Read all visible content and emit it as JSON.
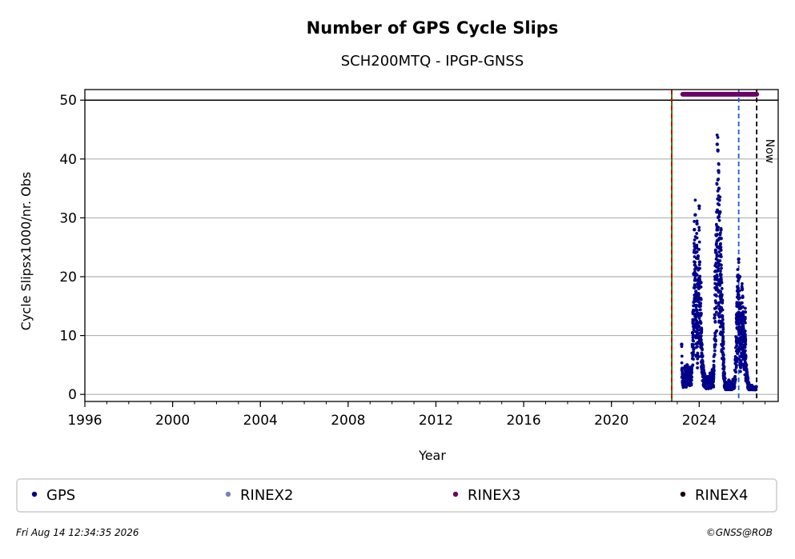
{
  "chart_data": {
    "type": "scatter",
    "title": "Number of GPS Cycle Slips",
    "subtitle": "SCH200MTQ - IPGP-GNSS",
    "xlabel": "Year",
    "ylabel": "Cycle Slipsx1000/nr. Obs",
    "xlim": [
      1996,
      2027.6
    ],
    "ylim": [
      -1.2,
      51.8
    ],
    "x_ticks": [
      1996,
      2000,
      2004,
      2008,
      2012,
      2016,
      2020,
      2024
    ],
    "y_ticks": [
      0,
      10,
      20,
      30,
      40,
      50
    ],
    "grid": "horizontal",
    "reference_line_y": 50,
    "vertical_lines": [
      {
        "x": 2022.75,
        "style": "solid",
        "color": "#008000"
      },
      {
        "x": 2022.75,
        "style": "dashed",
        "color": "#cc0000"
      },
      {
        "x": 2025.8,
        "style": "dashed",
        "color": "#1f5fbf"
      },
      {
        "x": 2026.62,
        "style": "dashed",
        "color": "#000000",
        "label": "Now"
      }
    ],
    "series": [
      {
        "name": "GPS",
        "color": "#00008b",
        "x": [
          2023.2,
          2023.25,
          2023.3,
          2023.35,
          2023.4,
          2023.45,
          2023.5,
          2023.55,
          2023.6,
          2023.65,
          2023.7,
          2023.72,
          2023.75,
          2023.78,
          2023.8,
          2023.82,
          2023.85,
          2023.88,
          2023.9,
          2023.92,
          2023.95,
          2023.98,
          2024.0,
          2024.02,
          2024.05,
          2024.08,
          2024.1,
          2024.12,
          2024.15,
          2024.18,
          2024.2,
          2024.25,
          2024.3,
          2024.35,
          2024.4,
          2024.45,
          2024.5,
          2024.55,
          2024.6,
          2024.65,
          2024.7,
          2024.72,
          2024.75,
          2024.78,
          2024.8,
          2024.82,
          2024.85,
          2024.88,
          2024.9,
          2024.92,
          2024.95,
          2024.98,
          2025.0,
          2025.02,
          2025.05,
          2025.08,
          2025.1,
          2025.12,
          2025.15,
          2025.2,
          2025.25,
          2025.3,
          2025.35,
          2025.4,
          2025.45,
          2025.5,
          2025.55,
          2025.6,
          2025.65,
          2025.7,
          2025.72,
          2025.75,
          2025.78,
          2025.8,
          2025.82,
          2025.85,
          2025.88,
          2025.9,
          2025.92,
          2025.95,
          2025.98,
          2026.0,
          2026.02,
          2026.05,
          2026.08,
          2026.1,
          2026.12,
          2026.15,
          2026.2,
          2026.25,
          2026.3,
          2026.35,
          2026.4,
          2026.45,
          2026.5,
          2026.55,
          2026.6
        ],
        "y": [
          8.5,
          3.0,
          2.6,
          4.5,
          3.2,
          5.0,
          4.0,
          3.8,
          4.6,
          4.2,
          10.5,
          14.0,
          20.5,
          28.0,
          22.0,
          30.5,
          17.5,
          25.0,
          29.0,
          12.0,
          23.5,
          18.0,
          32.0,
          22.5,
          15.0,
          19.0,
          11.0,
          8.5,
          6.5,
          4.8,
          4.0,
          3.4,
          2.8,
          2.5,
          3.0,
          2.4,
          3.6,
          2.6,
          4.2,
          3.0,
          13.0,
          20.0,
          24.5,
          27.0,
          31.0,
          42.5,
          41.5,
          38.0,
          35.0,
          33.0,
          31.0,
          25.0,
          26.5,
          19.0,
          16.0,
          12.0,
          9.0,
          6.0,
          3.5,
          2.0,
          1.6,
          1.8,
          2.4,
          1.7,
          2.1,
          1.9,
          2.5,
          2.2,
          6.0,
          13.0,
          15.0,
          20.0,
          17.0,
          23.0,
          12.0,
          20.0,
          9.5,
          15.5,
          11.0,
          18.0,
          16.5,
          13.5,
          10.0,
          12.5,
          8.0,
          14.0,
          6.5,
          5.0,
          3.0,
          2.0,
          1.6,
          1.3,
          1.5,
          1.1,
          1.2,
          1.0,
          1.3
        ]
      }
    ],
    "rinex3_bar": {
      "x_start": 2023.25,
      "x_end": 2026.62,
      "y": 51
    }
  },
  "legend": {
    "items": [
      {
        "label": "GPS",
        "color": "#00008b"
      },
      {
        "label": "RINEX2",
        "color": "#7b7fbf"
      },
      {
        "label": "RINEX3",
        "color": "#6b0066"
      },
      {
        "label": "RINEX4",
        "color": "#1a0010"
      }
    ]
  },
  "footer": {
    "timestamp": "Fri Aug 14 12:34:35 2026",
    "credit": "©GNSS@ROB"
  }
}
